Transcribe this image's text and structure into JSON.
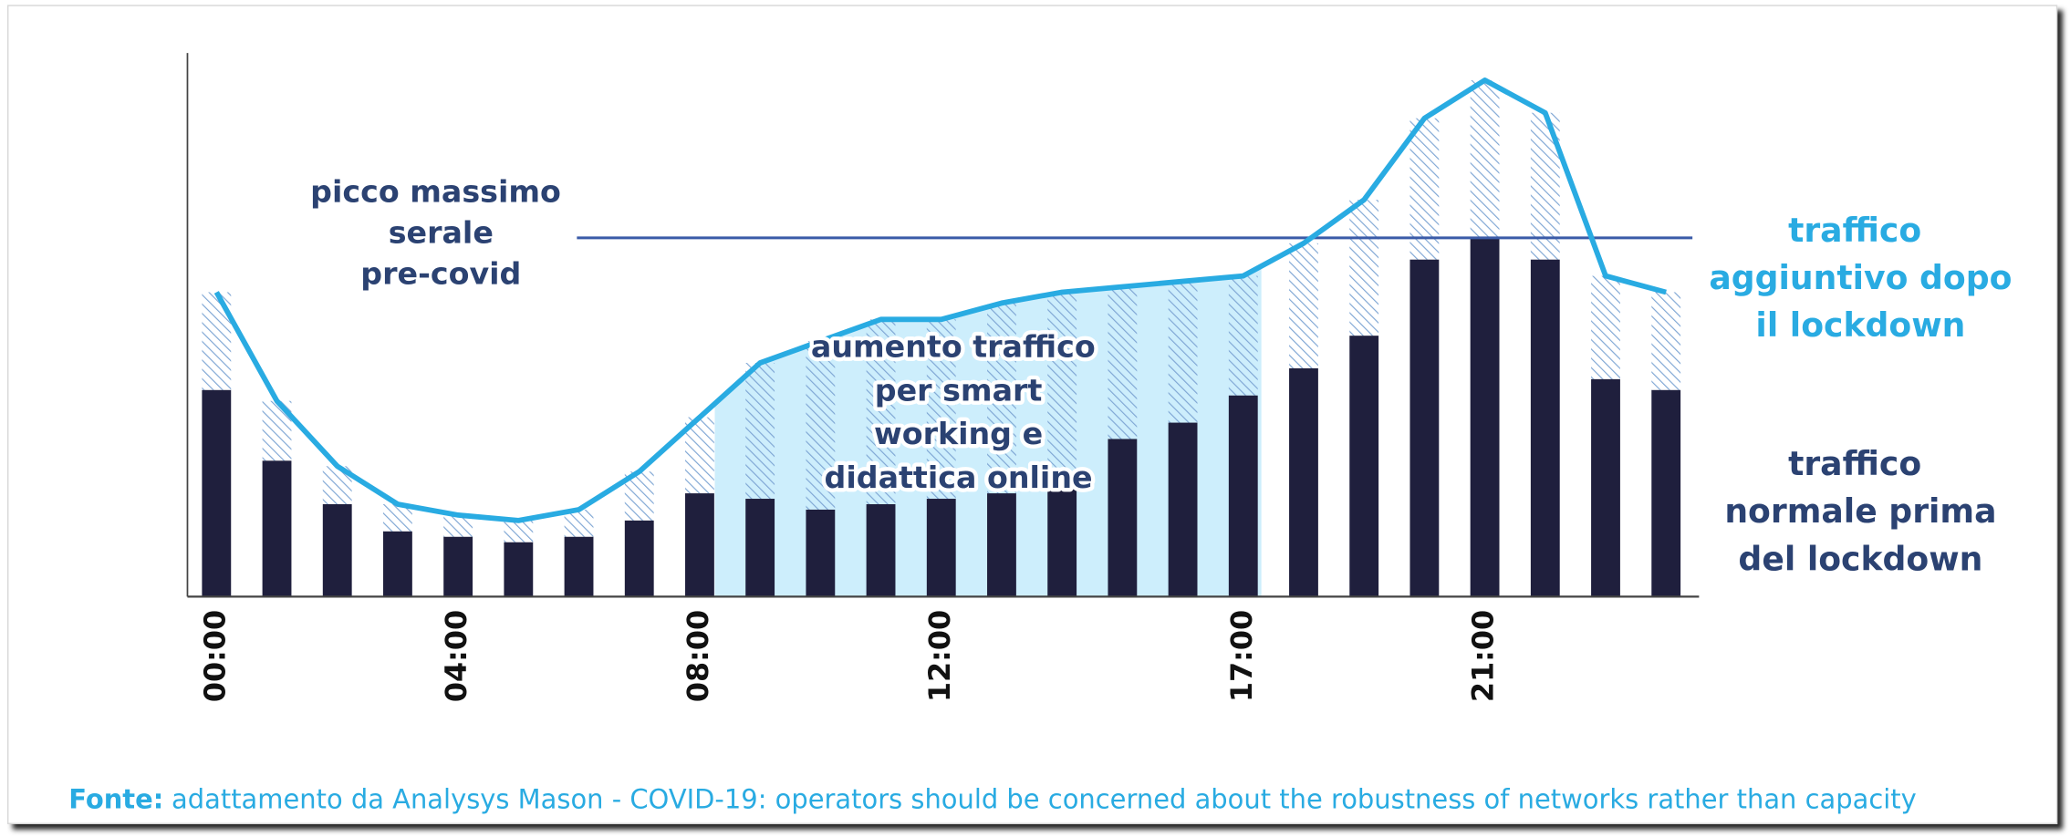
{
  "chart_data": {
    "type": "stacked-bar-line",
    "categories": [
      "00:00",
      null,
      null,
      null,
      "04:00",
      null,
      null,
      null,
      "08:00",
      null,
      null,
      null,
      "12:00",
      null,
      null,
      null,
      null,
      "17:00",
      null,
      null,
      null,
      "21:00",
      null,
      null,
      null
    ],
    "series": [
      {
        "name": "traffico normale prima del lockdown",
        "color": "#1f1f3d",
        "values": [
          38,
          25,
          17,
          12,
          11,
          10,
          11,
          14,
          19,
          18,
          16,
          17,
          18,
          19,
          20,
          29,
          32,
          37,
          42,
          48,
          62,
          66,
          62,
          40,
          38
        ]
      },
      {
        "name": "traffico aggiuntivo dopo il lockdown",
        "color": "#29abe2",
        "values": [
          18,
          11,
          7,
          5,
          4,
          4,
          5,
          9,
          14,
          25,
          31,
          34,
          33,
          35,
          36,
          28,
          26,
          22,
          23,
          25,
          26,
          29,
          27,
          19,
          18
        ]
      }
    ],
    "ylim": [
      0,
      100
    ],
    "reference_line": {
      "value": 66,
      "label": "picco massimo serale pre-covid",
      "color": "#3a5ba8"
    },
    "highlight": {
      "label": "aumento traffico per smart working e didattica online",
      "color": "#cdeefc"
    },
    "source": {
      "label": "Fonte:",
      "text": "adattamento da Analysys Mason - COVID-19: operators should be concerned about the robustness of networks rather than capacity"
    }
  }
}
